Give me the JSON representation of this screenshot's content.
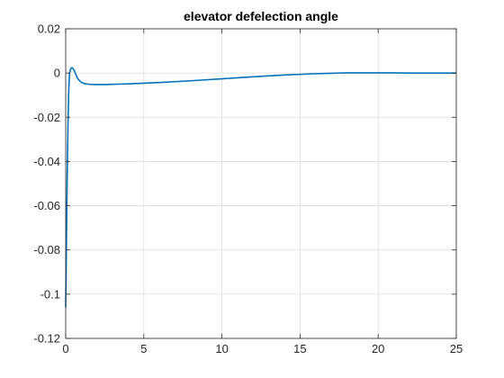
{
  "chart_data": {
    "type": "line",
    "title": "elevator defelection angle",
    "xlabel": "",
    "ylabel": "",
    "xlim": [
      0,
      25
    ],
    "ylim": [
      -0.12,
      0.02
    ],
    "xticks": [
      0,
      5,
      10,
      15,
      20,
      25
    ],
    "xtick_labels": [
      "0",
      "5",
      "10",
      "15",
      "20",
      "25"
    ],
    "yticks": [
      0.02,
      0,
      -0.02,
      -0.04,
      -0.06,
      -0.08,
      -0.1,
      -0.12
    ],
    "ytick_labels": [
      "0.02",
      "0",
      "-0.02",
      "-0.04",
      "-0.06",
      "-0.08",
      "-0.1",
      "-0.12"
    ],
    "grid": true,
    "series": [
      {
        "color": "#0072bd",
        "x": [
          0,
          0.03,
          0.06,
          0.1,
          0.15,
          0.2,
          0.25,
          0.3,
          0.35,
          0.4,
          0.45,
          0.5,
          0.6,
          0.7,
          0.8,
          1.0,
          1.2,
          1.5,
          2.0,
          2.5,
          3,
          4,
          5,
          6,
          8,
          10,
          12,
          14,
          15,
          16,
          17,
          18,
          19,
          20,
          21,
          22,
          23,
          24,
          25
        ],
        "y": [
          -0.106,
          -0.088,
          -0.068,
          -0.045,
          -0.022,
          -0.007,
          0.0,
          0.0015,
          0.0022,
          0.0024,
          0.0022,
          0.0017,
          0.0002,
          -0.0015,
          -0.0028,
          -0.0042,
          -0.0048,
          -0.0051,
          -0.0052,
          -0.0052,
          -0.0051,
          -0.0049,
          -0.0046,
          -0.0043,
          -0.0035,
          -0.0026,
          -0.0017,
          -0.0009,
          -0.0006,
          -0.0003,
          -0.0001,
          0.0001,
          0.0001,
          0.0001,
          0.0001,
          0.0,
          0.0,
          0.0,
          0.0
        ]
      }
    ]
  }
}
